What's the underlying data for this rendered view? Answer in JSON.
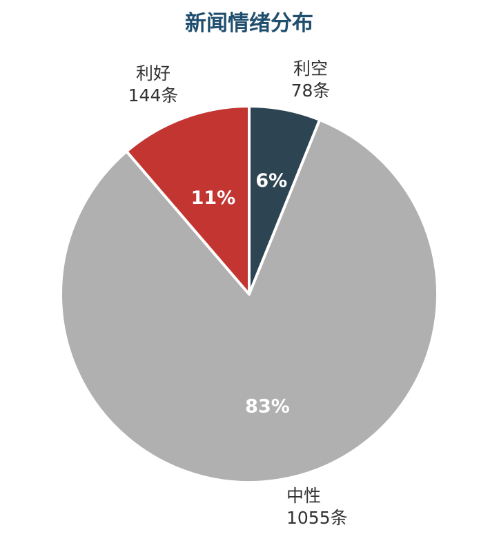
{
  "chart_data": {
    "type": "pie",
    "title": "新闻情绪分布",
    "slices": [
      {
        "name": "利空",
        "count": 78,
        "count_label": "78条",
        "percent_label": "6%",
        "color": "#2d4452"
      },
      {
        "name": "中性",
        "count": 1055,
        "count_label": "1055条",
        "percent_label": "83%",
        "color": "#b0b0b0"
      },
      {
        "name": "利好",
        "count": 144,
        "count_label": "144条",
        "percent_label": "11%",
        "color": "#c23531"
      }
    ],
    "start_angle": "12 o'clock",
    "direction": "clockwise",
    "legend": "none"
  }
}
